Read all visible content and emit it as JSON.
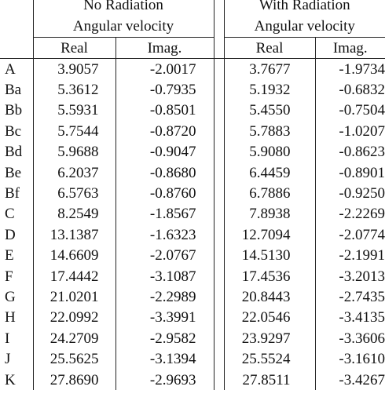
{
  "header": {
    "no_radiation": "No Radiation",
    "with_radiation": "With Radiation",
    "angular_velocity_nr": "Angular velocity",
    "angular_velocity_wr": "Angular velocity",
    "real_nr": "Real",
    "imag_nr": "Imag.",
    "real_wr": "Real",
    "imag_wr": "Imag."
  },
  "rows": [
    {
      "label": "A",
      "nr_real": "3.9057",
      "nr_imag": "-2.0017",
      "wr_real": "3.7677",
      "wr_imag": "-1.9734"
    },
    {
      "label": "Ba",
      "nr_real": "5.3612",
      "nr_imag": "-0.7935",
      "wr_real": "5.1932",
      "wr_imag": "-0.6832"
    },
    {
      "label": "Bb",
      "nr_real": "5.5931",
      "nr_imag": "-0.8501",
      "wr_real": "5.4550",
      "wr_imag": "-0.7504"
    },
    {
      "label": "Bc",
      "nr_real": "5.7544",
      "nr_imag": "-0.8720",
      "wr_real": "5.7883",
      "wr_imag": "-1.0207"
    },
    {
      "label": "Bd",
      "nr_real": "5.9688",
      "nr_imag": "-0.9047",
      "wr_real": "5.9080",
      "wr_imag": "-0.8623"
    },
    {
      "label": "Be",
      "nr_real": "6.2037",
      "nr_imag": "-0.8680",
      "wr_real": "6.4459",
      "wr_imag": "-0.8901"
    },
    {
      "label": "Bf",
      "nr_real": "6.5763",
      "nr_imag": "-0.8760",
      "wr_real": "6.7886",
      "wr_imag": "-0.9250"
    },
    {
      "label": "C",
      "nr_real": "8.2549",
      "nr_imag": "-1.8567",
      "wr_real": "7.8938",
      "wr_imag": "-2.2269"
    },
    {
      "label": "D",
      "nr_real": "13.1387",
      "nr_imag": "-1.6323",
      "wr_real": "12.7094",
      "wr_imag": "-2.0774"
    },
    {
      "label": "E",
      "nr_real": "14.6609",
      "nr_imag": "-2.0767",
      "wr_real": "14.5130",
      "wr_imag": "-2.1991"
    },
    {
      "label": "F",
      "nr_real": "17.4442",
      "nr_imag": "-3.1087",
      "wr_real": "17.4536",
      "wr_imag": "-3.2013"
    },
    {
      "label": "G",
      "nr_real": "21.0201",
      "nr_imag": "-2.2989",
      "wr_real": "20.8443",
      "wr_imag": "-2.7435"
    },
    {
      "label": "H",
      "nr_real": "22.0992",
      "nr_imag": "-3.3991",
      "wr_real": "22.0546",
      "wr_imag": "-3.4135"
    },
    {
      "label": "I",
      "nr_real": "24.2709",
      "nr_imag": "-2.9582",
      "wr_real": "23.9297",
      "wr_imag": "-3.3606"
    },
    {
      "label": "J",
      "nr_real": "25.5625",
      "nr_imag": "-3.1394",
      "wr_real": "25.5524",
      "wr_imag": "-3.1610"
    },
    {
      "label": "K",
      "nr_real": "27.8690",
      "nr_imag": "-2.9693",
      "wr_real": "27.8511",
      "wr_imag": "-3.4267"
    }
  ]
}
